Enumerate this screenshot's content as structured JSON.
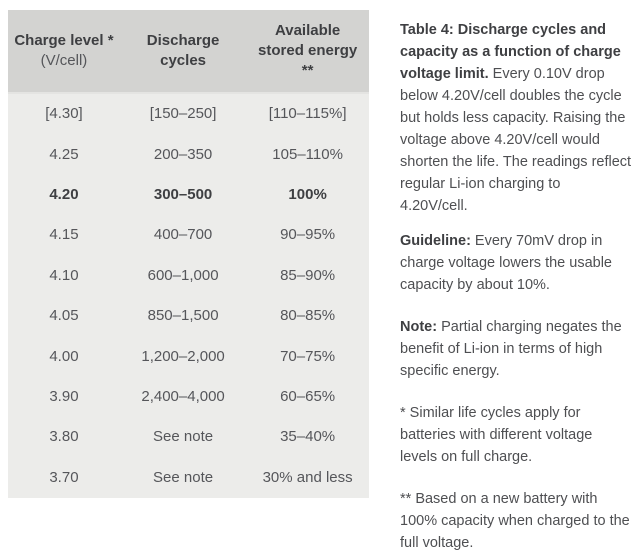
{
  "table": {
    "headers": [
      {
        "line1": "Charge level *",
        "line2": "(V/cell)"
      },
      {
        "line1": "Discharge",
        "line2": "cycles"
      },
      {
        "line1": "Available",
        "line2": "stored energy",
        "line3": "**"
      }
    ],
    "rows": [
      {
        "charge": "[4.30]",
        "cycles": "[150–250]",
        "energy": "[110–115%]"
      },
      {
        "charge": "4.25",
        "cycles": "200–350",
        "energy": "105–110%"
      },
      {
        "charge": "4.20",
        "cycles": "300–500",
        "energy": "100%"
      },
      {
        "charge": "4.15",
        "cycles": "400–700",
        "energy": "90–95%"
      },
      {
        "charge": "4.10",
        "cycles": "600–1,000",
        "energy": "85–90%"
      },
      {
        "charge": "4.05",
        "cycles": "850–1,500",
        "energy": "80–85%"
      },
      {
        "charge": "4.00",
        "cycles": "1,200–2,000",
        "energy": "70–75%"
      },
      {
        "charge": "3.90",
        "cycles": "2,400–4,000",
        "energy": "60–65%"
      },
      {
        "charge": "3.80",
        "cycles": "See note",
        "energy": "35–40%"
      },
      {
        "charge": "3.70",
        "cycles": "See note",
        "energy": "30% and less"
      }
    ],
    "emphasized_row_charge": "4.20"
  },
  "caption": {
    "paragraphs": [
      {
        "label": "Table 4: Discharge cycles and capacity as a function of charge voltage limit.",
        "text": " Every 0.10V drop below 4.20V/cell doubles the cycle but holds less capacity. Raising the voltage above 4.20V/cell would shorten the life. The readings reflect regular Li-ion charging to 4.20V/cell."
      },
      {
        "label": "Guideline:",
        "text": " Every 70mV drop in charge voltage lowers the usable capacity by about 10%."
      },
      {
        "label": "Note:",
        "text": " Partial charging negates the benefit of Li-ion in terms of high specific energy."
      },
      {
        "label": "",
        "text": "* Similar life cycles apply for batteries with different voltage levels on full charge."
      },
      {
        "label": "",
        "text": "** Based on a new battery with 100% capacity when charged to the full voltage."
      }
    ]
  },
  "colors": {
    "header_bg": "#d3d3d1",
    "body_bg": "#ececea",
    "text": "#55565a",
    "bold_text": "#3e3f42"
  }
}
